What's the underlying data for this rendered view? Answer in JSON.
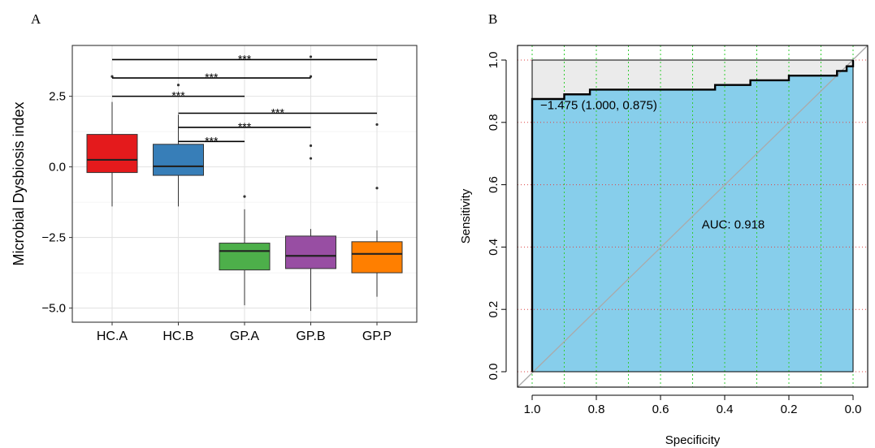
{
  "panel_labels": {
    "left": "A",
    "right": "B"
  },
  "colors": {
    "HC.A": "#E41A1C",
    "HC.B": "#377EB8",
    "GP.A": "#4DAF4A",
    "GP.B": "#984EA3",
    "GP.P": "#FF7F00",
    "roc_fill": "#87CEEB",
    "roc_upper_fill": "#EBEBEB",
    "diagonal": "#AAAAAA"
  },
  "chart_data": [
    {
      "type": "box",
      "title": "",
      "xlabel": "",
      "ylabel": "Microbial Dysbiosis index",
      "ylim": [
        -5.5,
        4.3
      ],
      "yticks": [
        -5.0,
        -2.5,
        0.0,
        2.5
      ],
      "ytick_labels": [
        "−5.0",
        "−2.5",
        "0.0",
        "2.5"
      ],
      "grid": true,
      "categories": [
        "HC.A",
        "HC.B",
        "GP.A",
        "GP.B",
        "GP.P"
      ],
      "boxes": [
        {
          "name": "HC.A",
          "whisker_low": -1.4,
          "q1": -0.2,
          "median": 0.25,
          "q3": 1.15,
          "whisker_high": 2.3,
          "outliers": [
            3.2
          ]
        },
        {
          "name": "HC.B",
          "whisker_low": -1.4,
          "q1": -0.3,
          "median": 0.02,
          "q3": 0.8,
          "whisker_high": 1.85,
          "outliers": [
            2.9
          ]
        },
        {
          "name": "GP.A",
          "whisker_low": -4.9,
          "q1": -3.65,
          "median": -2.98,
          "q3": -2.7,
          "whisker_high": -1.5,
          "outliers": [
            -1.05
          ]
        },
        {
          "name": "GP.B",
          "whisker_low": -5.1,
          "q1": -3.6,
          "median": -3.15,
          "q3": -2.45,
          "whisker_high": -2.2,
          "outliers": [
            0.75,
            0.3,
            3.9,
            3.2
          ]
        },
        {
          "name": "GP.P",
          "whisker_low": -4.6,
          "q1": -3.75,
          "median": -3.08,
          "q3": -2.65,
          "whisker_high": -2.25,
          "outliers": [
            1.5,
            -0.75
          ]
        }
      ],
      "significance": [
        {
          "from": "HC.A",
          "to": "GP.P",
          "y": 3.8,
          "label": "***"
        },
        {
          "from": "HC.A",
          "to": "GP.B",
          "y": 3.15,
          "label": "***"
        },
        {
          "from": "HC.A",
          "to": "GP.A",
          "y": 2.5,
          "label": "***"
        },
        {
          "from": "HC.B",
          "to": "GP.P",
          "y": 1.9,
          "label": "***"
        },
        {
          "from": "HC.B",
          "to": "GP.B",
          "y": 1.4,
          "label": "***"
        },
        {
          "from": "HC.B",
          "to": "GP.A",
          "y": 0.9,
          "label": "***"
        }
      ]
    },
    {
      "type": "line",
      "title": "",
      "xlabel": "Specificity",
      "ylabel": "Sensitivity",
      "xlim": [
        1.0,
        0.0
      ],
      "ylim": [
        0.0,
        1.0
      ],
      "xticks": [
        1.0,
        0.8,
        0.6,
        0.4,
        0.2,
        0.0
      ],
      "xtick_labels": [
        "1.0",
        "0.8",
        "0.6",
        "0.4",
        "0.2",
        "0.0"
      ],
      "yticks": [
        0.0,
        0.2,
        0.4,
        0.6,
        0.8,
        1.0
      ],
      "ytick_labels": [
        "0.0",
        "0.2",
        "0.4",
        "0.6",
        "0.8",
        "1.0"
      ],
      "grid": true,
      "series": [
        {
          "x": [
            1.0,
            1.0,
            0.9,
            0.9,
            0.82,
            0.82,
            0.43,
            0.43,
            0.32,
            0.32,
            0.2,
            0.2,
            0.05,
            0.05,
            0.02,
            0.02,
            0.0,
            0.0
          ],
          "y": [
            0.0,
            0.875,
            0.875,
            0.89,
            0.89,
            0.905,
            0.905,
            0.92,
            0.92,
            0.935,
            0.935,
            0.95,
            0.95,
            0.965,
            0.965,
            0.98,
            0.98,
            1.0
          ]
        }
      ],
      "annotations": [
        {
          "text": "AUC: 0.918",
          "x": 0.5,
          "y": 0.48
        },
        {
          "text": "−1.475 (1.000, 0.875)",
          "x": 1.0,
          "y": 0.85
        }
      ]
    }
  ]
}
